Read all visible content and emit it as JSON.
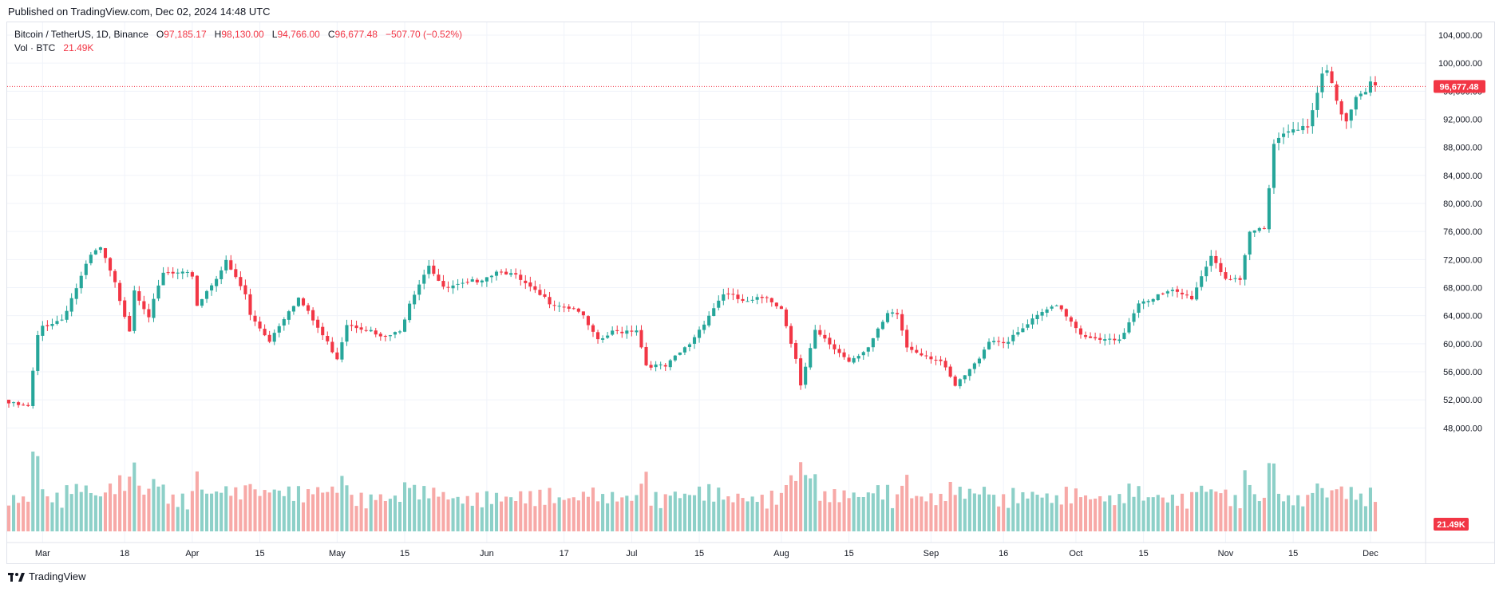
{
  "header": {
    "published": "Published on TradingView.com, Dec 02, 2024 14:48 UTC"
  },
  "legend": {
    "symbol": "Bitcoin / TetherUS, 1D, Binance",
    "o_label": "O",
    "o_value": "97,185.17",
    "h_label": "H",
    "h_value": "98,130.00",
    "l_label": "L",
    "l_value": "94,766.00",
    "c_label": "C",
    "c_value": "96,677.48",
    "change": "−507.70 (−0.52%)",
    "vol_label": "Vol · BTC",
    "vol_value": "21.49K"
  },
  "footer": {
    "brand": "TradingView"
  },
  "colors": {
    "up": "#26a69a",
    "down": "#f23645",
    "up_vol": "#8dd0c8",
    "down_vol": "#f7a9a7",
    "grid": "#f0f3fa",
    "text": "#131722"
  },
  "chart_data": {
    "type": "candlestick",
    "title": "Bitcoin / TetherUS, 1D, Binance",
    "x_ticks": [
      "Mar",
      "18",
      "Apr",
      "15",
      "May",
      "15",
      "Jun",
      "17",
      "Jul",
      "15",
      "Aug",
      "15",
      "Sep",
      "16",
      "Oct",
      "15",
      "Nov",
      "15",
      "Dec"
    ],
    "y_ticks": [
      "104,000.00",
      "100,000.00",
      "96,000.00",
      "92,000.00",
      "88,000.00",
      "84,000.00",
      "80,000.00",
      "76,000.00",
      "72,000.00",
      "68,000.00",
      "64,000.00",
      "60,000.00",
      "56,000.00",
      "52,000.00",
      "48,000.00"
    ],
    "ylim": [
      45000,
      105000
    ],
    "last_price": "96,677.48",
    "last_volume": "21.49K",
    "dates": [
      "2024-02-23",
      "2024-12-02"
    ],
    "close_path": [
      [
        "2024-02-23",
        51500
      ],
      [
        "2024-02-27",
        51000
      ],
      [
        "2024-02-29",
        61000
      ],
      [
        "2024-03-01",
        62500
      ],
      [
        "2024-03-05",
        63500
      ],
      [
        "2024-03-11",
        72500
      ],
      [
        "2024-03-13",
        73600
      ],
      [
        "2024-03-16",
        68500
      ],
      [
        "2024-03-19",
        62000
      ],
      [
        "2024-03-20",
        67800
      ],
      [
        "2024-03-23",
        64000
      ],
      [
        "2024-03-26",
        70000
      ],
      [
        "2024-04-01",
        69800
      ],
      [
        "2024-04-02",
        65500
      ],
      [
        "2024-04-08",
        71600
      ],
      [
        "2024-04-12",
        67000
      ],
      [
        "2024-04-13",
        64000
      ],
      [
        "2024-04-17",
        60500
      ],
      [
        "2024-04-21",
        64900
      ],
      [
        "2024-04-23",
        66500
      ],
      [
        "2024-05-01",
        58000
      ],
      [
        "2024-05-03",
        62900
      ],
      [
        "2024-05-07",
        62200
      ],
      [
        "2024-05-10",
        60800
      ],
      [
        "2024-05-14",
        61600
      ],
      [
        "2024-05-16",
        66000
      ],
      [
        "2024-05-20",
        71400
      ],
      [
        "2024-05-23",
        67800
      ],
      [
        "2024-05-28",
        68500
      ],
      [
        "2024-06-04",
        70600
      ],
      [
        "2024-06-07",
        69500
      ],
      [
        "2024-06-11",
        67300
      ],
      [
        "2024-06-14",
        66000
      ],
      [
        "2024-06-20",
        64800
      ],
      [
        "2024-06-24",
        60300
      ],
      [
        "2024-06-27",
        61600
      ],
      [
        "2024-07-02",
        62100
      ],
      [
        "2024-07-04",
        57000
      ],
      [
        "2024-07-08",
        56700
      ],
      [
        "2024-07-13",
        60000
      ],
      [
        "2024-07-17",
        64100
      ],
      [
        "2024-07-20",
        67200
      ],
      [
        "2024-07-25",
        65800
      ],
      [
        "2024-07-29",
        66800
      ],
      [
        "2024-08-01",
        65000
      ],
      [
        "2024-08-04",
        58000
      ],
      [
        "2024-08-05",
        54000
      ],
      [
        "2024-08-08",
        61700
      ],
      [
        "2024-08-12",
        59300
      ],
      [
        "2024-08-15",
        57600
      ],
      [
        "2024-08-19",
        59500
      ],
      [
        "2024-08-23",
        64100
      ],
      [
        "2024-08-25",
        64200
      ],
      [
        "2024-08-27",
        59500
      ],
      [
        "2024-09-03",
        57500
      ],
      [
        "2024-09-06",
        53900
      ],
      [
        "2024-09-10",
        57000
      ],
      [
        "2024-09-13",
        60500
      ],
      [
        "2024-09-17",
        60300
      ],
      [
        "2024-09-22",
        63300
      ],
      [
        "2024-09-27",
        65800
      ],
      [
        "2024-09-30",
        63300
      ],
      [
        "2024-10-03",
        60700
      ],
      [
        "2024-10-10",
        60300
      ],
      [
        "2024-10-14",
        66000
      ],
      [
        "2024-10-21",
        67400
      ],
      [
        "2024-10-25",
        66600
      ],
      [
        "2024-10-29",
        72700
      ],
      [
        "2024-11-01",
        69400
      ],
      [
        "2024-11-04",
        68700
      ],
      [
        "2024-11-06",
        75800
      ],
      [
        "2024-11-09",
        76600
      ],
      [
        "2024-11-11",
        88700
      ],
      [
        "2024-11-13",
        90000
      ],
      [
        "2024-11-15",
        91100
      ],
      [
        "2024-11-18",
        90500
      ],
      [
        "2024-11-21",
        98200
      ],
      [
        "2024-11-22",
        98800
      ],
      [
        "2024-11-25",
        93000
      ],
      [
        "2024-11-26",
        91800
      ],
      [
        "2024-11-28",
        95600
      ],
      [
        "2024-11-30",
        96400
      ],
      [
        "2024-12-01",
        97185
      ],
      [
        "2024-12-02",
        96677
      ]
    ]
  }
}
